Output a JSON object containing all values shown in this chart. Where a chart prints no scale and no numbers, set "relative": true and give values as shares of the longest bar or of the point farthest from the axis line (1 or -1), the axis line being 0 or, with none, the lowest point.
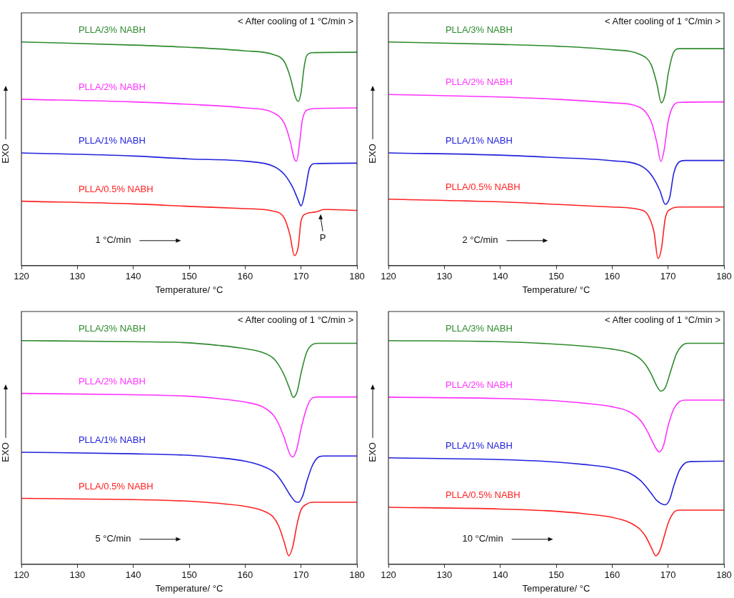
{
  "chart_data": [
    {
      "type": "line",
      "relative": true,
      "xlabel": "Temperature/ °C",
      "ylabel": "EXO",
      "xlim": [
        120,
        180
      ],
      "xticks": [
        120,
        130,
        140,
        150,
        160,
        170,
        180
      ],
      "tick_labels": "x",
      "grid": false,
      "legend": false,
      "marker": "none",
      "line_style": "solid",
      "annotations": [
        "< After cooling of 1 °C/min >",
        "1 °C/min",
        {
          "text": "P",
          "x": 173.5,
          "y": 0.24
        }
      ],
      "series": [
        {
          "name": "PLLA/3% NABH",
          "color": "#2e8b2e",
          "x": [
            120,
            140,
            150,
            160,
            165,
            167,
            168,
            169,
            169.5,
            170,
            170.5,
            171,
            172,
            180
          ],
          "values": [
            1,
            0.986,
            0.976,
            0.96,
            0.944,
            0.912,
            0.848,
            0.753,
            0.734,
            0.774,
            0.88,
            0.938,
            0.952,
            0.954
          ]
        },
        {
          "name": "PLLA/2% NABH",
          "color": "#ff33ff",
          "x": [
            120,
            140,
            150,
            160,
            165,
            167,
            168,
            168.8,
            169.2,
            169.7,
            170.2,
            171,
            173,
            180
          ],
          "values": [
            0.744,
            0.732,
            0.721,
            0.705,
            0.684,
            0.636,
            0.562,
            0.477,
            0.467,
            0.541,
            0.647,
            0.695,
            0.703,
            0.705
          ]
        },
        {
          "name": "PLLA/1% NABH",
          "color": "#2222dd",
          "x": [
            120,
            140,
            150,
            160,
            165,
            167,
            168.5,
            169.5,
            170,
            170.7,
            171.5,
            172.5,
            180
          ],
          "values": [
            0.504,
            0.49,
            0.477,
            0.467,
            0.445,
            0.408,
            0.35,
            0.292,
            0.267,
            0.328,
            0.435,
            0.456,
            0.458
          ]
        },
        {
          "name": "PLLA/0.5% NABH",
          "color": "#ff2222",
          "x": [
            120,
            140,
            150,
            160,
            165,
            167,
            168,
            168.8,
            169.5,
            170,
            171,
            172,
            173,
            174,
            175,
            180
          ],
          "values": [
            0.288,
            0.276,
            0.265,
            0.255,
            0.244,
            0.212,
            0.138,
            0.045,
            0.085,
            0.201,
            0.233,
            0.238,
            0.242,
            0.251,
            0.251,
            0.247
          ]
        }
      ]
    },
    {
      "type": "line",
      "relative": true,
      "xlabel": "Temperature/ °C",
      "ylabel": "EXO",
      "xlim": [
        120,
        180
      ],
      "xticks": [
        120,
        130,
        140,
        150,
        160,
        170,
        180
      ],
      "tick_labels": "x",
      "grid": false,
      "legend": false,
      "marker": "none",
      "line_style": "solid",
      "annotations": [
        "< After cooling of 1 °C/min >",
        "2 °C/min"
      ],
      "series": [
        {
          "name": "PLLA/3% NABH",
          "color": "#2e8b2e",
          "x": [
            120,
            140,
            150,
            160,
            165,
            167,
            168,
            168.8,
            169.5,
            170,
            171,
            172,
            180
          ],
          "values": [
            1,
            0.989,
            0.981,
            0.965,
            0.944,
            0.897,
            0.813,
            0.728,
            0.77,
            0.854,
            0.954,
            0.97,
            0.97
          ]
        },
        {
          "name": "PLLA/2% NABH",
          "color": "#ff33ff",
          "x": [
            120,
            140,
            150,
            160,
            165,
            167,
            168,
            168.7,
            169.3,
            170,
            171,
            172,
            180
          ],
          "values": [
            0.765,
            0.754,
            0.744,
            0.728,
            0.707,
            0.643,
            0.549,
            0.466,
            0.517,
            0.643,
            0.717,
            0.73,
            0.732
          ]
        },
        {
          "name": "PLLA/1% NABH",
          "color": "#2222dd",
          "x": [
            120,
            140,
            150,
            160,
            165,
            167,
            168.5,
            169.5,
            170.3,
            171,
            172,
            173,
            180
          ],
          "values": [
            0.504,
            0.494,
            0.483,
            0.469,
            0.448,
            0.406,
            0.338,
            0.274,
            0.306,
            0.411,
            0.464,
            0.47,
            0.47
          ]
        },
        {
          "name": "PLLA/0.5% NABH",
          "color": "#ff2222",
          "x": [
            120,
            140,
            150,
            160,
            165,
            166.5,
            167.5,
            168.2,
            168.8,
            169.5,
            170.5,
            172,
            180
          ],
          "values": [
            0.297,
            0.285,
            0.274,
            0.262,
            0.25,
            0.222,
            0.148,
            0.032,
            0.074,
            0.211,
            0.253,
            0.262,
            0.262
          ]
        }
      ]
    },
    {
      "type": "line",
      "relative": true,
      "xlabel": "Temperature/ °C",
      "ylabel": "EXO",
      "xlim": [
        120,
        180
      ],
      "xticks": [
        120,
        130,
        140,
        150,
        160,
        170,
        180
      ],
      "tick_labels": "x",
      "grid": false,
      "legend": false,
      "marker": "none",
      "line_style": "solid",
      "annotations": [
        "< After cooling of 1 °C/min >",
        "5 °C/min"
      ],
      "series": [
        {
          "name": "PLLA/3% NABH",
          "color": "#2e8b2e",
          "x": [
            120,
            140,
            150,
            155,
            160,
            163,
            165,
            166,
            167,
            168,
            168.6,
            169.3,
            170,
            171,
            172,
            173,
            180
          ],
          "values": [
            1,
            0.995,
            0.99,
            0.979,
            0.964,
            0.948,
            0.922,
            0.891,
            0.845,
            0.782,
            0.746,
            0.772,
            0.855,
            0.948,
            0.982,
            0.988,
            0.988
          ]
        },
        {
          "name": "PLLA/2% NABH",
          "color": "#ff33ff",
          "x": [
            120,
            140,
            150,
            155,
            160,
            163,
            165,
            166,
            167,
            168,
            168.5,
            169.2,
            170,
            171,
            172,
            173,
            180
          ],
          "values": [
            0.764,
            0.758,
            0.751,
            0.741,
            0.725,
            0.705,
            0.668,
            0.627,
            0.565,
            0.492,
            0.48,
            0.513,
            0.606,
            0.699,
            0.743,
            0.748,
            0.748
          ]
        },
        {
          "name": "PLLA/1% NABH",
          "color": "#2222dd",
          "x": [
            120,
            140,
            150,
            155,
            160,
            163,
            165,
            166,
            167,
            168,
            169,
            169.5,
            170.3,
            171,
            172,
            173,
            174,
            180
          ],
          "values": [
            0.501,
            0.494,
            0.487,
            0.477,
            0.461,
            0.44,
            0.415,
            0.389,
            0.352,
            0.311,
            0.28,
            0.277,
            0.306,
            0.368,
            0.44,
            0.477,
            0.484,
            0.484
          ]
        },
        {
          "name": "PLLA/0.5% NABH",
          "color": "#ff2222",
          "x": [
            120,
            140,
            150,
            155,
            160,
            163,
            165,
            166,
            167,
            167.8,
            168.5,
            169.3,
            170,
            171,
            172,
            180
          ],
          "values": [
            0.295,
            0.289,
            0.282,
            0.273,
            0.259,
            0.241,
            0.212,
            0.171,
            0.098,
            0.038,
            0.078,
            0.181,
            0.244,
            0.269,
            0.277,
            0.277
          ]
        }
      ]
    },
    {
      "type": "line",
      "relative": true,
      "xlabel": "Temperature/ °C",
      "ylabel": "EXO",
      "xlim": [
        120,
        180
      ],
      "xticks": [
        120,
        130,
        140,
        150,
        160,
        170,
        180
      ],
      "tick_labels": "x",
      "grid": false,
      "legend": false,
      "marker": "none",
      "line_style": "solid",
      "annotations": [
        "< After cooling of 1 °C/min >",
        "10 °C/min"
      ],
      "series": [
        {
          "name": "PLLA/3% NABH",
          "color": "#2e8b2e",
          "x": [
            120,
            140,
            150,
            155,
            160,
            163,
            165,
            166,
            167,
            168,
            168.7,
            169.5,
            170.5,
            171.5,
            172.5,
            173.5,
            180
          ],
          "values": [
            1,
            0.995,
            0.984,
            0.975,
            0.962,
            0.946,
            0.919,
            0.892,
            0.849,
            0.796,
            0.774,
            0.79,
            0.866,
            0.941,
            0.978,
            0.988,
            0.988
          ]
        },
        {
          "name": "PLLA/2% NABH",
          "color": "#ff33ff",
          "x": [
            120,
            140,
            150,
            155,
            160,
            163,
            165,
            166,
            167,
            168,
            168.4,
            169.2,
            170,
            171,
            172,
            173,
            180
          ],
          "values": [
            0.747,
            0.741,
            0.731,
            0.72,
            0.704,
            0.683,
            0.645,
            0.608,
            0.559,
            0.511,
            0.502,
            0.532,
            0.618,
            0.694,
            0.726,
            0.734,
            0.734
          ]
        },
        {
          "name": "PLLA/1% NABH",
          "color": "#2222dd",
          "x": [
            120,
            140,
            150,
            155,
            160,
            163,
            165,
            166,
            167,
            168,
            169.5,
            170.3,
            171,
            172,
            173,
            174,
            180
          ],
          "values": [
            0.476,
            0.468,
            0.457,
            0.446,
            0.43,
            0.409,
            0.376,
            0.349,
            0.317,
            0.285,
            0.266,
            0.29,
            0.349,
            0.419,
            0.452,
            0.459,
            0.461
          ]
        },
        {
          "name": "PLLA/0.5% NABH",
          "color": "#ff2222",
          "x": [
            120,
            140,
            150,
            155,
            160,
            163,
            165,
            166,
            167,
            167.8,
            168.5,
            169.3,
            170,
            171,
            172,
            180
          ],
          "values": [
            0.255,
            0.247,
            0.237,
            0.226,
            0.21,
            0.188,
            0.156,
            0.124,
            0.075,
            0.038,
            0.059,
            0.124,
            0.183,
            0.231,
            0.242,
            0.242
          ]
        }
      ]
    }
  ]
}
